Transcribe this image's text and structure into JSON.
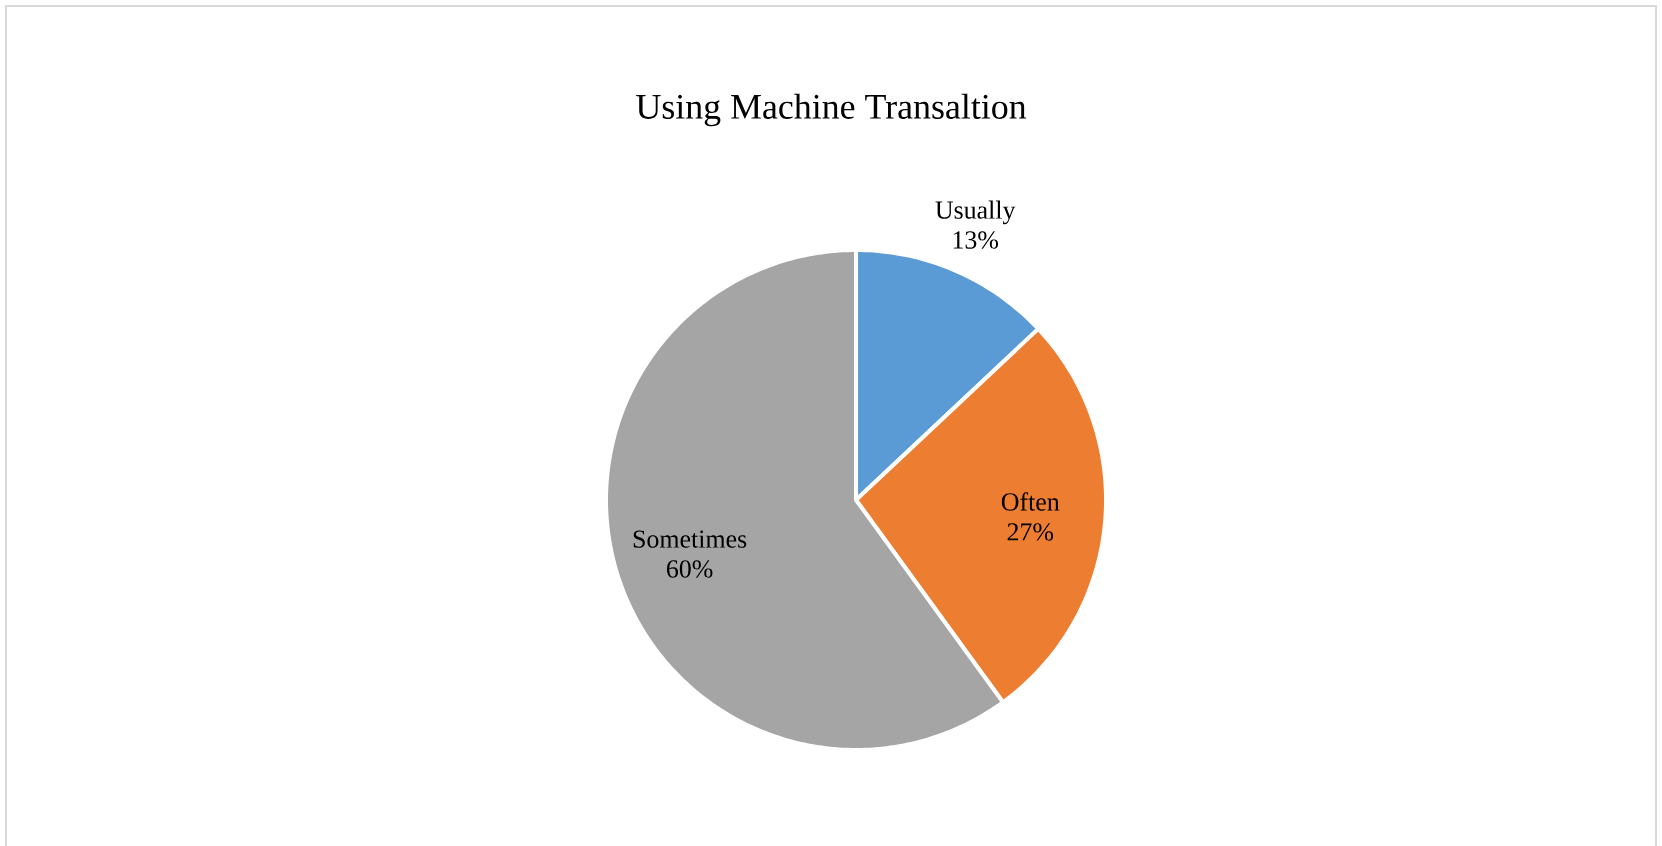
{
  "chart_data": {
    "type": "pie",
    "title": "Using Machine Transaltion",
    "categories": [
      "Usually",
      "Often",
      "Sometimes"
    ],
    "values": [
      13,
      27,
      60
    ],
    "colors": [
      "#5b9bd5",
      "#ed7d31",
      "#a5a5a5"
    ],
    "value_labels": [
      "13%",
      "27%",
      "60%"
    ]
  }
}
